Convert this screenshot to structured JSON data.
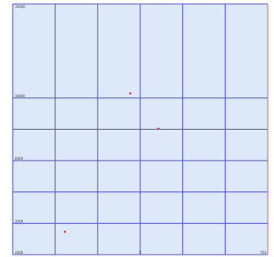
{
  "chart_data": {
    "type": "scatter",
    "title": "",
    "xlabel": "",
    "ylabel": "",
    "xlim": [
      0,
      6
    ],
    "ylim": [
      0,
      16000
    ],
    "x_gridlines": [
      1,
      2,
      3,
      4,
      5
    ],
    "y_gridlines": [
      2000,
      4000,
      6000,
      8000,
      10000
    ],
    "y_tick_labels": [
      {
        "value": 16000,
        "label": "16000"
      },
      {
        "value": 10000,
        "label": "10000"
      },
      {
        "value": 6000,
        "label": "6000"
      },
      {
        "value": 2000,
        "label": "2000"
      },
      {
        "value": 0,
        "label": "0000"
      }
    ],
    "x_tick_labels": [
      {
        "value": 3,
        "label": "5"
      },
      {
        "value": 6,
        "label": "700"
      }
    ],
    "series": [
      {
        "points": [
          {
            "x": 1.23,
            "y": 1460
          },
          {
            "x": 2.77,
            "y": 10290
          },
          {
            "x": 3.43,
            "y": 8040
          }
        ]
      }
    ],
    "grid": true,
    "colors": {
      "background": "#dde9f8",
      "grid": "#4444ee",
      "frame": "#4444ee",
      "right_border": "#ee5555",
      "point": "#ee3333"
    }
  }
}
